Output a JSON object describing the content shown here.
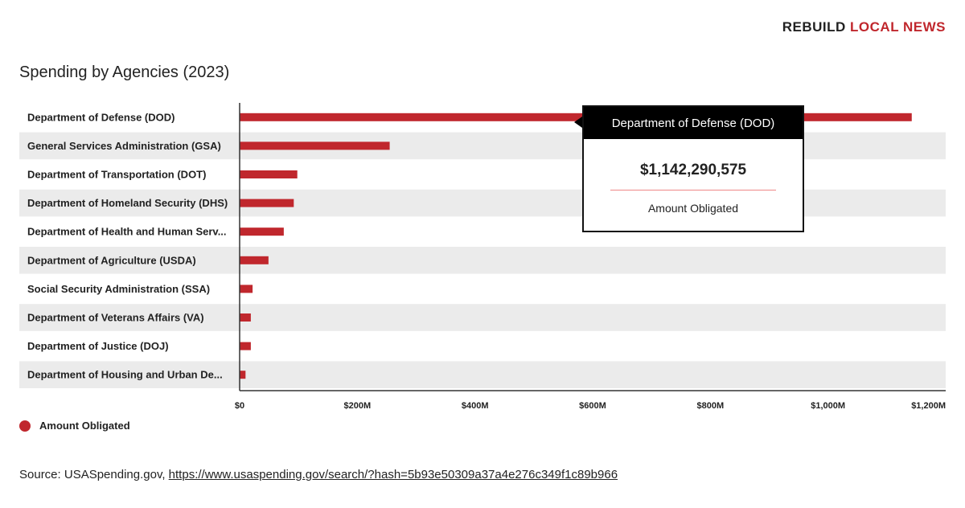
{
  "brand": {
    "part1": "REBUILD",
    "part2": "LOCAL NEWS"
  },
  "chart_data": {
    "type": "bar",
    "orientation": "horizontal",
    "title": "Spending by Agencies (2023)",
    "categories": [
      "Department of Defense (DOD)",
      "General Services Administration (GSA)",
      "Department of Transportation (DOT)",
      "Department of Homeland Security (DHS)",
      "Department of Health and Human Serv...",
      "Department of Agriculture (USDA)",
      "Social Security Administration (SSA)",
      "Department of Veterans Affairs (VA)",
      "Department of Justice (DOJ)",
      "Department of Housing and Urban De..."
    ],
    "series": [
      {
        "name": "Amount Obligated",
        "color": "#c0272d",
        "values": [
          1142290575,
          255000000,
          98000000,
          92000000,
          75000000,
          49000000,
          22000000,
          19000000,
          19000000,
          10000000
        ]
      }
    ],
    "xlim": [
      0,
      1200000000
    ],
    "xticks": [
      0,
      200000000,
      400000000,
      600000000,
      800000000,
      1000000000,
      1200000000
    ],
    "xtick_labels": [
      "$0",
      "$200M",
      "$400M",
      "$600M",
      "$800M",
      "$1,000M",
      "$1,200M"
    ],
    "legend": "bottom-left",
    "grid": false,
    "row_band_color": "#ebebeb"
  },
  "tooltip": {
    "title": "Department of Defense (DOD)",
    "value": "$1,142,290,575",
    "label": "Amount Obligated"
  },
  "legend": {
    "label": "Amount Obligated"
  },
  "source": {
    "prefix": "Source: USASpending.gov, ",
    "link": "https://www.usaspending.gov/search/?hash=5b93e50309a37a4e276c349f1c89b966"
  }
}
